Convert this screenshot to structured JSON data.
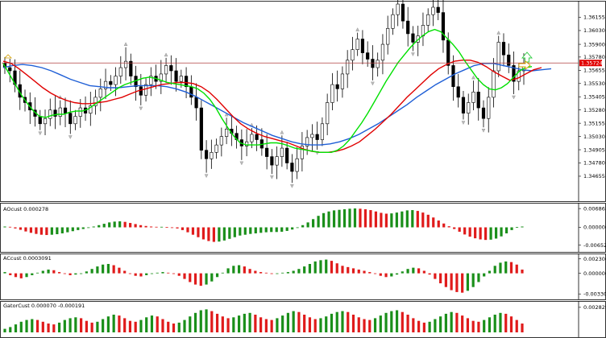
{
  "chart_data": [
    {
      "type": "candlestick",
      "panel": "price",
      "ylim": [
        1.3448,
        1.3625
      ],
      "y_ticks": [
        "1.36155",
        "1.36030",
        "1.35900",
        "1.35780",
        "1.35655",
        "1.35530",
        "1.35405",
        "1.35280",
        "1.35155",
        "1.35030",
        "1.34905",
        "1.34780",
        "1.34655"
      ],
      "current_price_label": "1.35724",
      "current_price": 1.35724,
      "colors": {
        "background": "#ffffff",
        "candle_up": "#ffffff",
        "candle_down": "#000000",
        "ma_fast": "#00e000",
        "ma_mid": "#e00000",
        "ma_slow": "#1f5fd6",
        "price_line": "#b04040",
        "price_label_bg": "#e00000",
        "arrow_up": "#2ecc40",
        "arrow_right": "#d4a000"
      },
      "ohlc_close": [
        1.3568,
        1.3565,
        1.3552,
        1.354,
        1.3535,
        1.3528,
        1.3522,
        1.3515,
        1.352,
        1.3528,
        1.3522,
        1.353,
        1.3525,
        1.3515,
        1.3522,
        1.353,
        1.3525,
        1.3532,
        1.354,
        1.3548,
        1.3555,
        1.3552,
        1.356,
        1.3568,
        1.3574,
        1.356,
        1.355,
        1.3542,
        1.3552,
        1.356,
        1.3555,
        1.3562,
        1.357,
        1.3565,
        1.3555,
        1.356,
        1.355,
        1.354,
        1.353,
        1.349,
        1.3482,
        1.3488,
        1.3495,
        1.3503,
        1.351,
        1.3506,
        1.35,
        1.3494,
        1.3498,
        1.3505,
        1.35,
        1.3492,
        1.3484,
        1.3476,
        1.3484,
        1.3492,
        1.3478,
        1.347,
        1.3482,
        1.3494,
        1.3502,
        1.3505,
        1.35,
        1.3515,
        1.3535,
        1.3552,
        1.3548,
        1.3562,
        1.3575,
        1.3585,
        1.3595,
        1.3582,
        1.3576,
        1.3568,
        1.3575,
        1.359,
        1.3605,
        1.3618,
        1.3628,
        1.3612,
        1.36,
        1.3592,
        1.3598,
        1.3608,
        1.3618,
        1.3625,
        1.362,
        1.3594,
        1.357,
        1.355,
        1.354,
        1.3525,
        1.3535,
        1.3545,
        1.353,
        1.352,
        1.354,
        1.3565,
        1.3592,
        1.358,
        1.357,
        1.3555,
        1.3565,
        1.3572
      ],
      "ma_fast": [
        1.3572,
        1.3562,
        1.3552,
        1.3542,
        1.3534,
        1.3527,
        1.3522,
        1.3521,
        1.3523,
        1.3524,
        1.3524,
        1.3526,
        1.3527,
        1.3527,
        1.3529,
        1.3533,
        1.3537,
        1.3541,
        1.3545,
        1.3549,
        1.3552,
        1.3554,
        1.3556,
        1.3558,
        1.3559,
        1.3558,
        1.3556,
        1.3554,
        1.3553,
        1.3552,
        1.3551,
        1.355,
        1.3548,
        1.3544,
        1.3538,
        1.353,
        1.352,
        1.3511,
        1.3503,
        1.3497,
        1.3495,
        1.3495,
        1.3495,
        1.3496,
        1.3497,
        1.3497,
        1.3496,
        1.3494,
        1.3492,
        1.3491,
        1.349,
        1.3489,
        1.3488,
        1.3488,
        1.3488,
        1.349,
        1.3494,
        1.35,
        1.3508,
        1.3516,
        1.3525,
        1.3535,
        1.3545,
        1.3555,
        1.3564,
        1.3573,
        1.358,
        1.3587,
        1.3593,
        1.3598,
        1.3602,
        1.3604,
        1.3602,
        1.3596,
        1.359,
        1.3583,
        1.3574,
        1.3566,
        1.3558,
        1.3552,
        1.3548,
        1.3547,
        1.3549,
        1.3553,
        1.3559,
        1.3565,
        1.3568,
        1.3569
      ],
      "ma_mid": [
        1.3574,
        1.3572,
        1.3567,
        1.3561,
        1.3555,
        1.3549,
        1.3544,
        1.354,
        1.3537,
        1.3535,
        1.3534,
        1.3534,
        1.3535,
        1.3536,
        1.3538,
        1.354,
        1.3543,
        1.3546,
        1.3548,
        1.355,
        1.3552,
        1.3553,
        1.3554,
        1.3554,
        1.3553,
        1.355,
        1.3545,
        1.3538,
        1.353,
        1.3522,
        1.3515,
        1.351,
        1.3506,
        1.3503,
        1.3501,
        1.3499,
        1.3497,
        1.3494,
        1.3491,
        1.3489,
        1.3488,
        1.3488,
        1.3489,
        1.3491,
        1.3494,
        1.3498,
        1.3504,
        1.351,
        1.3517,
        1.3524,
        1.3532,
        1.354,
        1.3547,
        1.3554,
        1.3561,
        1.3567,
        1.3571,
        1.3574,
        1.3575,
        1.3575,
        1.3573,
        1.3569,
        1.3564,
        1.356,
        1.3556,
        1.3558,
        1.3562,
        1.3566,
        1.3568
      ],
      "ma_slow": [
        1.3568,
        1.357,
        1.3571,
        1.357,
        1.3568,
        1.3565,
        1.3561,
        1.3557,
        1.3554,
        1.3551,
        1.355,
        1.3549,
        1.3549,
        1.355,
        1.3551,
        1.3551,
        1.3551,
        1.355,
        1.3548,
        1.3545,
        1.3541,
        1.3536,
        1.3531,
        1.3526,
        1.3521,
        1.3516,
        1.3512,
        1.3508,
        1.3504,
        1.3501,
        1.3498,
        1.3496,
        1.3495,
        1.3495,
        1.3496,
        1.3498,
        1.3501,
        1.3505,
        1.351,
        1.3515,
        1.3521,
        1.3527,
        1.3533,
        1.354,
        1.3546,
        1.3552,
        1.3557,
        1.3562,
        1.3566,
        1.357,
        1.3572,
        1.3572,
        1.357,
        1.3568,
        1.3566,
        1.3565,
        1.3566,
        1.3567
      ]
    },
    {
      "type": "histogram",
      "panel": "aocust",
      "title": "AOcust 0.000278",
      "y_ticks": [
        "0.006863",
        "0.000000",
        "-0.006525"
      ],
      "ylim": [
        -0.0072,
        0.0072
      ],
      "colors": {
        "up": "#1a8f1a",
        "down": "#e01b1b"
      },
      "values": [
        0.0003,
        0.0002,
        -0.0004,
        -0.0009,
        -0.0015,
        -0.002,
        -0.0024,
        -0.0027,
        -0.0028,
        -0.0027,
        -0.0025,
        -0.0022,
        -0.0018,
        -0.0014,
        -0.001,
        -0.0006,
        -0.0002,
        0.0003,
        0.0008,
        0.0013,
        0.0018,
        0.0021,
        0.0022,
        0.002,
        0.0016,
        0.0012,
        0.0008,
        0.0005,
        0.0003,
        0.0002,
        0.0002,
        0.0001,
        0.0,
        -0.0004,
        -0.001,
        -0.0018,
        -0.0027,
        -0.0036,
        -0.0044,
        -0.005,
        -0.0053,
        -0.0052,
        -0.0048,
        -0.0042,
        -0.0036,
        -0.003,
        -0.0027,
        -0.0024,
        -0.0022,
        -0.002,
        -0.0018,
        -0.0017,
        -0.0017,
        -0.0016,
        -0.0013,
        -0.0008,
        -0.0001,
        0.0008,
        0.0018,
        0.003,
        0.0042,
        0.0052,
        0.0058,
        0.0062,
        0.0064,
        0.0066,
        0.0068,
        0.0069,
        0.0068,
        0.0066,
        0.0063,
        0.0058,
        0.0053,
        0.005,
        0.0051,
        0.0054,
        0.0058,
        0.0062,
        0.0063,
        0.006,
        0.0054,
        0.0046,
        0.0036,
        0.0025,
        0.0014,
        0.0004,
        -0.0006,
        -0.0016,
        -0.0026,
        -0.0034,
        -0.004,
        -0.0044,
        -0.0046,
        -0.0045,
        -0.0041,
        -0.0033,
        -0.0022,
        -0.001,
        0.0001,
        0.0003
      ]
    },
    {
      "type": "histogram",
      "panel": "accust",
      "title": "ACcust 0.0003091",
      "y_ticks": [
        "0.0023065",
        "0.000000",
        "-0.0033010"
      ],
      "ylim": [
        -0.0034,
        0.0024
      ],
      "colors": {
        "up": "#1a8f1a",
        "down": "#e01b1b"
      },
      "values": [
        0.0002,
        -0.0003,
        -0.0006,
        -0.0008,
        -0.0006,
        -0.0003,
        0.0001,
        0.0004,
        0.0006,
        0.0005,
        0.0002,
        -0.0001,
        -0.0003,
        -0.0002,
        0.0,
        0.0003,
        0.0007,
        0.0011,
        0.0014,
        0.0015,
        0.0013,
        0.0009,
        0.0004,
        -0.0001,
        -0.0004,
        -0.0005,
        -0.0003,
        -0.0001,
        0.0001,
        0.0002,
        0.0001,
        -0.0001,
        -0.0004,
        -0.0009,
        -0.0014,
        -0.0018,
        -0.002,
        -0.0018,
        -0.0013,
        -0.0006,
        0.0001,
        0.0008,
        0.0012,
        0.0013,
        0.0011,
        0.0007,
        0.0004,
        0.0002,
        0.0001,
        0.0,
        0.0,
        0.0001,
        0.0002,
        0.0004,
        0.0007,
        0.0011,
        0.0015,
        0.0019,
        0.0021,
        0.0022,
        0.002,
        0.0016,
        0.0012,
        0.001,
        0.0008,
        0.0006,
        0.0004,
        0.0002,
        -0.0001,
        -0.0004,
        -0.0006,
        -0.0005,
        -0.0002,
        0.0003,
        0.0007,
        0.0009,
        0.0008,
        0.0004,
        -0.0002,
        -0.0009,
        -0.0016,
        -0.0022,
        -0.0027,
        -0.003,
        -0.0031,
        -0.0028,
        -0.0022,
        -0.0014,
        -0.0005,
        0.0004,
        0.0012,
        0.0017,
        0.0019,
        0.0018,
        0.0014,
        0.0006
      ]
    },
    {
      "type": "histogram",
      "panel": "gatorcust",
      "title": "GatorCust 0.000070 -0.000191",
      "y_ticks": [
        "0.002829"
      ],
      "ylim": [
        0,
        0.003
      ],
      "colors": {
        "up": "#1a8f1a",
        "down": "#e01b1b"
      },
      "values": [
        0.0004,
        0.0006,
        0.0009,
        0.0012,
        0.0014,
        0.0015,
        0.0014,
        0.0012,
        0.001,
        0.0009,
        0.0011,
        0.0014,
        0.0016,
        0.0017,
        0.0016,
        0.0013,
        0.0011,
        0.0012,
        0.0015,
        0.0018,
        0.002,
        0.0019,
        0.0016,
        0.0013,
        0.0012,
        0.0014,
        0.0017,
        0.0019,
        0.0018,
        0.0015,
        0.0012,
        0.001,
        0.0011,
        0.0014,
        0.0018,
        0.0022,
        0.0025,
        0.0026,
        0.0024,
        0.0021,
        0.0018,
        0.0016,
        0.0017,
        0.0019,
        0.0021,
        0.0022,
        0.002,
        0.0017,
        0.0015,
        0.0014,
        0.0016,
        0.0019,
        0.0022,
        0.0024,
        0.0023,
        0.002,
        0.0017,
        0.0015,
        0.0016,
        0.0018,
        0.0021,
        0.0023,
        0.0024,
        0.0023,
        0.002,
        0.0017,
        0.0015,
        0.0014,
        0.0016,
        0.0019,
        0.0022,
        0.0024,
        0.0025,
        0.0023,
        0.002,
        0.0016,
        0.0013,
        0.0011,
        0.0012,
        0.0015,
        0.0018,
        0.0021,
        0.0023,
        0.0022,
        0.0019,
        0.0016,
        0.0013,
        0.0012,
        0.0014,
        0.0017,
        0.002,
        0.0022,
        0.0021,
        0.0018,
        0.0014,
        0.001
      ]
    }
  ]
}
